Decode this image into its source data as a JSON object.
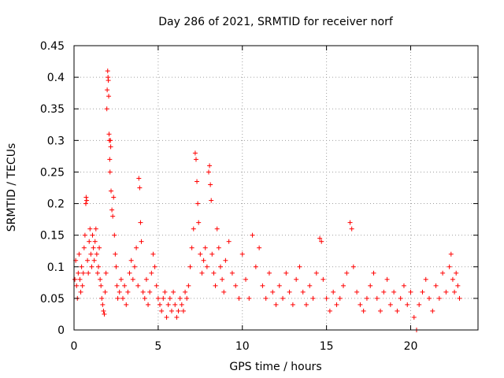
{
  "chart_data": {
    "type": "scatter",
    "title": "Day 286 of 2021, SRMTID for receiver norf",
    "xlabel": "GPS time / hours",
    "ylabel": "SRMTID / TECUs",
    "xlim": [
      0,
      24
    ],
    "ylim": [
      0,
      0.45
    ],
    "xticks": [
      0,
      5,
      10,
      15,
      20
    ],
    "xtick_labels": [
      "0",
      "5",
      "10",
      "15",
      "20"
    ],
    "yticks": [
      0,
      0.05,
      0.1,
      0.15,
      0.2,
      0.25,
      0.3,
      0.35,
      0.4,
      0.45
    ],
    "ytick_labels": [
      "0",
      "0.05",
      "0.1",
      "0.15",
      "0.2",
      "0.25",
      "0.3",
      "0.35",
      "0.4",
      "0.45"
    ],
    "grid": true,
    "marker": "+",
    "color": "#ff0000",
    "series": [
      {
        "name": "SRMTID",
        "points": [
          [
            0.05,
            0.08
          ],
          [
            0.1,
            0.11
          ],
          [
            0.15,
            0.07
          ],
          [
            0.2,
            0.05
          ],
          [
            0.25,
            0.09
          ],
          [
            0.3,
            0.12
          ],
          [
            0.35,
            0.08
          ],
          [
            0.4,
            0.06
          ],
          [
            0.45,
            0.1
          ],
          [
            0.5,
            0.07
          ],
          [
            0.55,
            0.09
          ],
          [
            0.6,
            0.13
          ],
          [
            0.65,
            0.15
          ],
          [
            0.7,
            0.2
          ],
          [
            0.72,
            0.21
          ],
          [
            0.75,
            0.205
          ],
          [
            0.8,
            0.11
          ],
          [
            0.85,
            0.09
          ],
          [
            0.9,
            0.14
          ],
          [
            0.95,
            0.16
          ],
          [
            1.0,
            0.12
          ],
          [
            1.05,
            0.1
          ],
          [
            1.1,
            0.15
          ],
          [
            1.15,
            0.13
          ],
          [
            1.2,
            0.11
          ],
          [
            1.25,
            0.14
          ],
          [
            1.3,
            0.16
          ],
          [
            1.35,
            0.12
          ],
          [
            1.4,
            0.09
          ],
          [
            1.45,
            0.1
          ],
          [
            1.5,
            0.13
          ],
          [
            1.55,
            0.08
          ],
          [
            1.6,
            0.07
          ],
          [
            1.65,
            0.05
          ],
          [
            1.7,
            0.04
          ],
          [
            1.75,
            0.03
          ],
          [
            1.8,
            0.025
          ],
          [
            1.85,
            0.06
          ],
          [
            1.9,
            0.09
          ],
          [
            1.95,
            0.35
          ],
          [
            1.97,
            0.38
          ],
          [
            2.0,
            0.41
          ],
          [
            2.02,
            0.4
          ],
          [
            2.04,
            0.395
          ],
          [
            2.06,
            0.37
          ],
          [
            2.08,
            0.31
          ],
          [
            2.1,
            0.3
          ],
          [
            2.12,
            0.27
          ],
          [
            2.14,
            0.25
          ],
          [
            2.16,
            0.3
          ],
          [
            2.18,
            0.29
          ],
          [
            2.2,
            0.22
          ],
          [
            2.25,
            0.19
          ],
          [
            2.3,
            0.18
          ],
          [
            2.35,
            0.21
          ],
          [
            2.4,
            0.15
          ],
          [
            2.45,
            0.12
          ],
          [
            2.5,
            0.1
          ],
          [
            2.55,
            0.07
          ],
          [
            2.6,
            0.05
          ],
          [
            2.7,
            0.06
          ],
          [
            2.8,
            0.08
          ],
          [
            2.9,
            0.05
          ],
          [
            3.0,
            0.07
          ],
          [
            3.1,
            0.04
          ],
          [
            3.2,
            0.06
          ],
          [
            3.3,
            0.09
          ],
          [
            3.4,
            0.11
          ],
          [
            3.5,
            0.08
          ],
          [
            3.6,
            0.1
          ],
          [
            3.7,
            0.13
          ],
          [
            3.8,
            0.07
          ],
          [
            3.85,
            0.24
          ],
          [
            3.9,
            0.225
          ],
          [
            3.95,
            0.17
          ],
          [
            4.0,
            0.14
          ],
          [
            4.1,
            0.06
          ],
          [
            4.2,
            0.05
          ],
          [
            4.3,
            0.08
          ],
          [
            4.4,
            0.04
          ],
          [
            4.5,
            0.06
          ],
          [
            4.6,
            0.09
          ],
          [
            4.7,
            0.12
          ],
          [
            4.8,
            0.1
          ],
          [
            4.9,
            0.07
          ],
          [
            5.0,
            0.05
          ],
          [
            5.1,
            0.04
          ],
          [
            5.2,
            0.03
          ],
          [
            5.3,
            0.05
          ],
          [
            5.4,
            0.06
          ],
          [
            5.5,
            0.02
          ],
          [
            5.6,
            0.04
          ],
          [
            5.7,
            0.05
          ],
          [
            5.8,
            0.03
          ],
          [
            5.9,
            0.06
          ],
          [
            6.0,
            0.04
          ],
          [
            6.1,
            0.02
          ],
          [
            6.2,
            0.03
          ],
          [
            6.3,
            0.05
          ],
          [
            6.4,
            0.04
          ],
          [
            6.5,
            0.03
          ],
          [
            6.6,
            0.06
          ],
          [
            6.7,
            0.05
          ],
          [
            6.8,
            0.07
          ],
          [
            6.9,
            0.1
          ],
          [
            7.0,
            0.13
          ],
          [
            7.1,
            0.16
          ],
          [
            7.2,
            0.28
          ],
          [
            7.25,
            0.27
          ],
          [
            7.3,
            0.235
          ],
          [
            7.35,
            0.2
          ],
          [
            7.4,
            0.17
          ],
          [
            7.5,
            0.12
          ],
          [
            7.6,
            0.09
          ],
          [
            7.7,
            0.11
          ],
          [
            7.8,
            0.13
          ],
          [
            7.9,
            0.1
          ],
          [
            8.0,
            0.25
          ],
          [
            8.05,
            0.26
          ],
          [
            8.1,
            0.23
          ],
          [
            8.15,
            0.205
          ],
          [
            8.2,
            0.12
          ],
          [
            8.3,
            0.09
          ],
          [
            8.4,
            0.07
          ],
          [
            8.5,
            0.16
          ],
          [
            8.6,
            0.13
          ],
          [
            8.7,
            0.1
          ],
          [
            8.8,
            0.08
          ],
          [
            8.9,
            0.06
          ],
          [
            9.0,
            0.11
          ],
          [
            9.2,
            0.14
          ],
          [
            9.4,
            0.09
          ],
          [
            9.6,
            0.07
          ],
          [
            9.8,
            0.05
          ],
          [
            10.0,
            0.12
          ],
          [
            10.2,
            0.08
          ],
          [
            10.4,
            0.05
          ],
          [
            10.6,
            0.15
          ],
          [
            10.8,
            0.1
          ],
          [
            11.0,
            0.13
          ],
          [
            11.2,
            0.07
          ],
          [
            11.4,
            0.05
          ],
          [
            11.6,
            0.09
          ],
          [
            11.8,
            0.06
          ],
          [
            12.0,
            0.04
          ],
          [
            12.2,
            0.07
          ],
          [
            12.4,
            0.05
          ],
          [
            12.6,
            0.09
          ],
          [
            12.8,
            0.06
          ],
          [
            13.0,
            0.04
          ],
          [
            13.2,
            0.08
          ],
          [
            13.4,
            0.1
          ],
          [
            13.6,
            0.06
          ],
          [
            13.8,
            0.04
          ],
          [
            14.0,
            0.07
          ],
          [
            14.2,
            0.05
          ],
          [
            14.4,
            0.09
          ],
          [
            14.6,
            0.145
          ],
          [
            14.7,
            0.14
          ],
          [
            14.8,
            0.08
          ],
          [
            15.0,
            0.05
          ],
          [
            15.2,
            0.03
          ],
          [
            15.4,
            0.06
          ],
          [
            15.6,
            0.04
          ],
          [
            15.8,
            0.05
          ],
          [
            16.0,
            0.07
          ],
          [
            16.2,
            0.09
          ],
          [
            16.4,
            0.17
          ],
          [
            16.5,
            0.16
          ],
          [
            16.6,
            0.1
          ],
          [
            16.8,
            0.06
          ],
          [
            17.0,
            0.04
          ],
          [
            17.2,
            0.03
          ],
          [
            17.4,
            0.05
          ],
          [
            17.6,
            0.07
          ],
          [
            17.8,
            0.09
          ],
          [
            18.0,
            0.05
          ],
          [
            18.2,
            0.03
          ],
          [
            18.4,
            0.06
          ],
          [
            18.6,
            0.08
          ],
          [
            18.8,
            0.04
          ],
          [
            19.0,
            0.06
          ],
          [
            19.2,
            0.03
          ],
          [
            19.4,
            0.05
          ],
          [
            19.6,
            0.07
          ],
          [
            19.8,
            0.04
          ],
          [
            20.0,
            0.06
          ],
          [
            20.2,
            0.02
          ],
          [
            20.35,
            0.0
          ],
          [
            20.5,
            0.04
          ],
          [
            20.7,
            0.06
          ],
          [
            20.9,
            0.08
          ],
          [
            21.1,
            0.05
          ],
          [
            21.3,
            0.03
          ],
          [
            21.5,
            0.07
          ],
          [
            21.7,
            0.05
          ],
          [
            21.9,
            0.09
          ],
          [
            22.1,
            0.06
          ],
          [
            22.3,
            0.1
          ],
          [
            22.4,
            0.12
          ],
          [
            22.5,
            0.08
          ],
          [
            22.6,
            0.06
          ],
          [
            22.7,
            0.09
          ],
          [
            22.8,
            0.07
          ],
          [
            22.9,
            0.05
          ]
        ]
      }
    ]
  }
}
